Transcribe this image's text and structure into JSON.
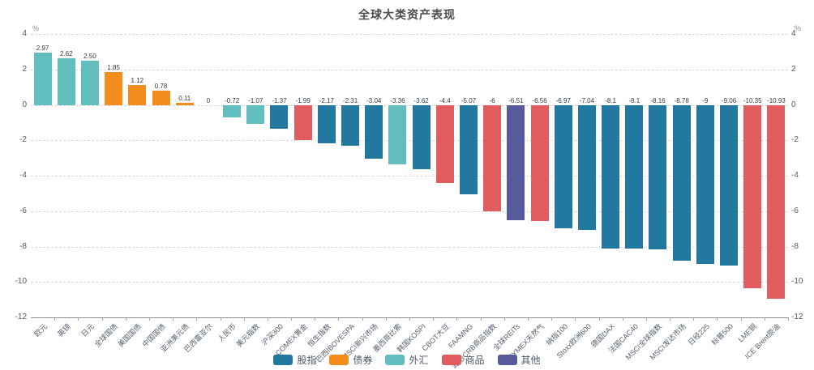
{
  "title": "全球大类资产表现",
  "y_axis": {
    "unit_left": "%",
    "unit_right": "%",
    "ticks": [
      "4",
      "2",
      "0",
      "-2",
      "-4",
      "-6",
      "-8",
      "-10",
      "-12"
    ],
    "tick_values": [
      4,
      2,
      0,
      -2,
      -4,
      -6,
      -8,
      -10,
      -12
    ]
  },
  "legend": [
    {
      "label": "股指",
      "color": "#22789e"
    },
    {
      "label": "债券",
      "color": "#f58c1e"
    },
    {
      "label": "外汇",
      "color": "#63bec0"
    },
    {
      "label": "商品",
      "color": "#e05c5f"
    },
    {
      "label": "其他",
      "color": "#575b9d"
    }
  ],
  "group_colors": {
    "股指": "#22789e",
    "债券": "#f58c1e",
    "外汇": "#63bec0",
    "商品": "#e05c5f",
    "其他": "#575b9d"
  },
  "chart_data": {
    "type": "bar",
    "title": "全球大类资产表现",
    "xlabel": "",
    "ylabel": "%",
    "ylim": [
      -12,
      4
    ],
    "grid": true,
    "grid_style": "dashed",
    "legend_position": "bottom",
    "categories": [
      "欧元",
      "英镑",
      "日元",
      "全球国债",
      "美国国债",
      "中国国债",
      "亚洲美元债",
      "巴西雷亚尔",
      "人民币",
      "美元指数",
      "沪深300",
      "COMEX黄金",
      "恒生指数",
      "巴西IBOVESPA",
      "MSCI新兴市场",
      "墨西哥比索",
      "韩国KOSPI",
      "CBOT大豆",
      "FAAMNG",
      "路透CRB商品指数",
      "全球REITs",
      "NYMEX天然气",
      "纳指100",
      "Stoxx欧洲600",
      "德国DAX",
      "法国CAC40",
      "MSCI全球指数",
      "MSCI发达市场",
      "日经225",
      "标普500",
      "LME铜",
      "ICE Brent原油"
    ],
    "values": [
      2.97,
      2.62,
      2.5,
      1.85,
      1.12,
      0.78,
      0.11,
      0,
      -0.72,
      -1.07,
      -1.37,
      -1.99,
      -2.17,
      -2.31,
      -3.04,
      -3.36,
      -3.62,
      -4.4,
      -5.07,
      -6,
      -6.51,
      -6.56,
      -6.97,
      -7.04,
      -8.1,
      -8.1,
      -8.16,
      -8.78,
      -9,
      -9.06,
      -10.35,
      -10.93
    ],
    "value_labels": [
      "2.97",
      "2.62",
      "2.50",
      "1.85",
      "1.12",
      "0.78",
      "0.11",
      "0",
      "-0.72",
      "-1.07",
      "-1.37",
      "-1.99",
      "-2.17",
      "-2.31",
      "-3.04",
      "-3.36",
      "-3.62",
      "-4.4",
      "-5.07",
      "-6",
      "-6.51",
      "-6.56",
      "-6.97",
      "-7.04",
      "-8.1",
      "-8.1",
      "-8.16",
      "-8.78",
      "-9",
      "-9.06",
      "-10.35",
      "-10.93"
    ],
    "groups": [
      "外汇",
      "外汇",
      "外汇",
      "债券",
      "债券",
      "债券",
      "债券",
      "外汇",
      "外汇",
      "外汇",
      "股指",
      "商品",
      "股指",
      "股指",
      "股指",
      "外汇",
      "股指",
      "商品",
      "股指",
      "商品",
      "其他",
      "商品",
      "股指",
      "股指",
      "股指",
      "股指",
      "股指",
      "股指",
      "股指",
      "股指",
      "商品",
      "商品"
    ]
  }
}
